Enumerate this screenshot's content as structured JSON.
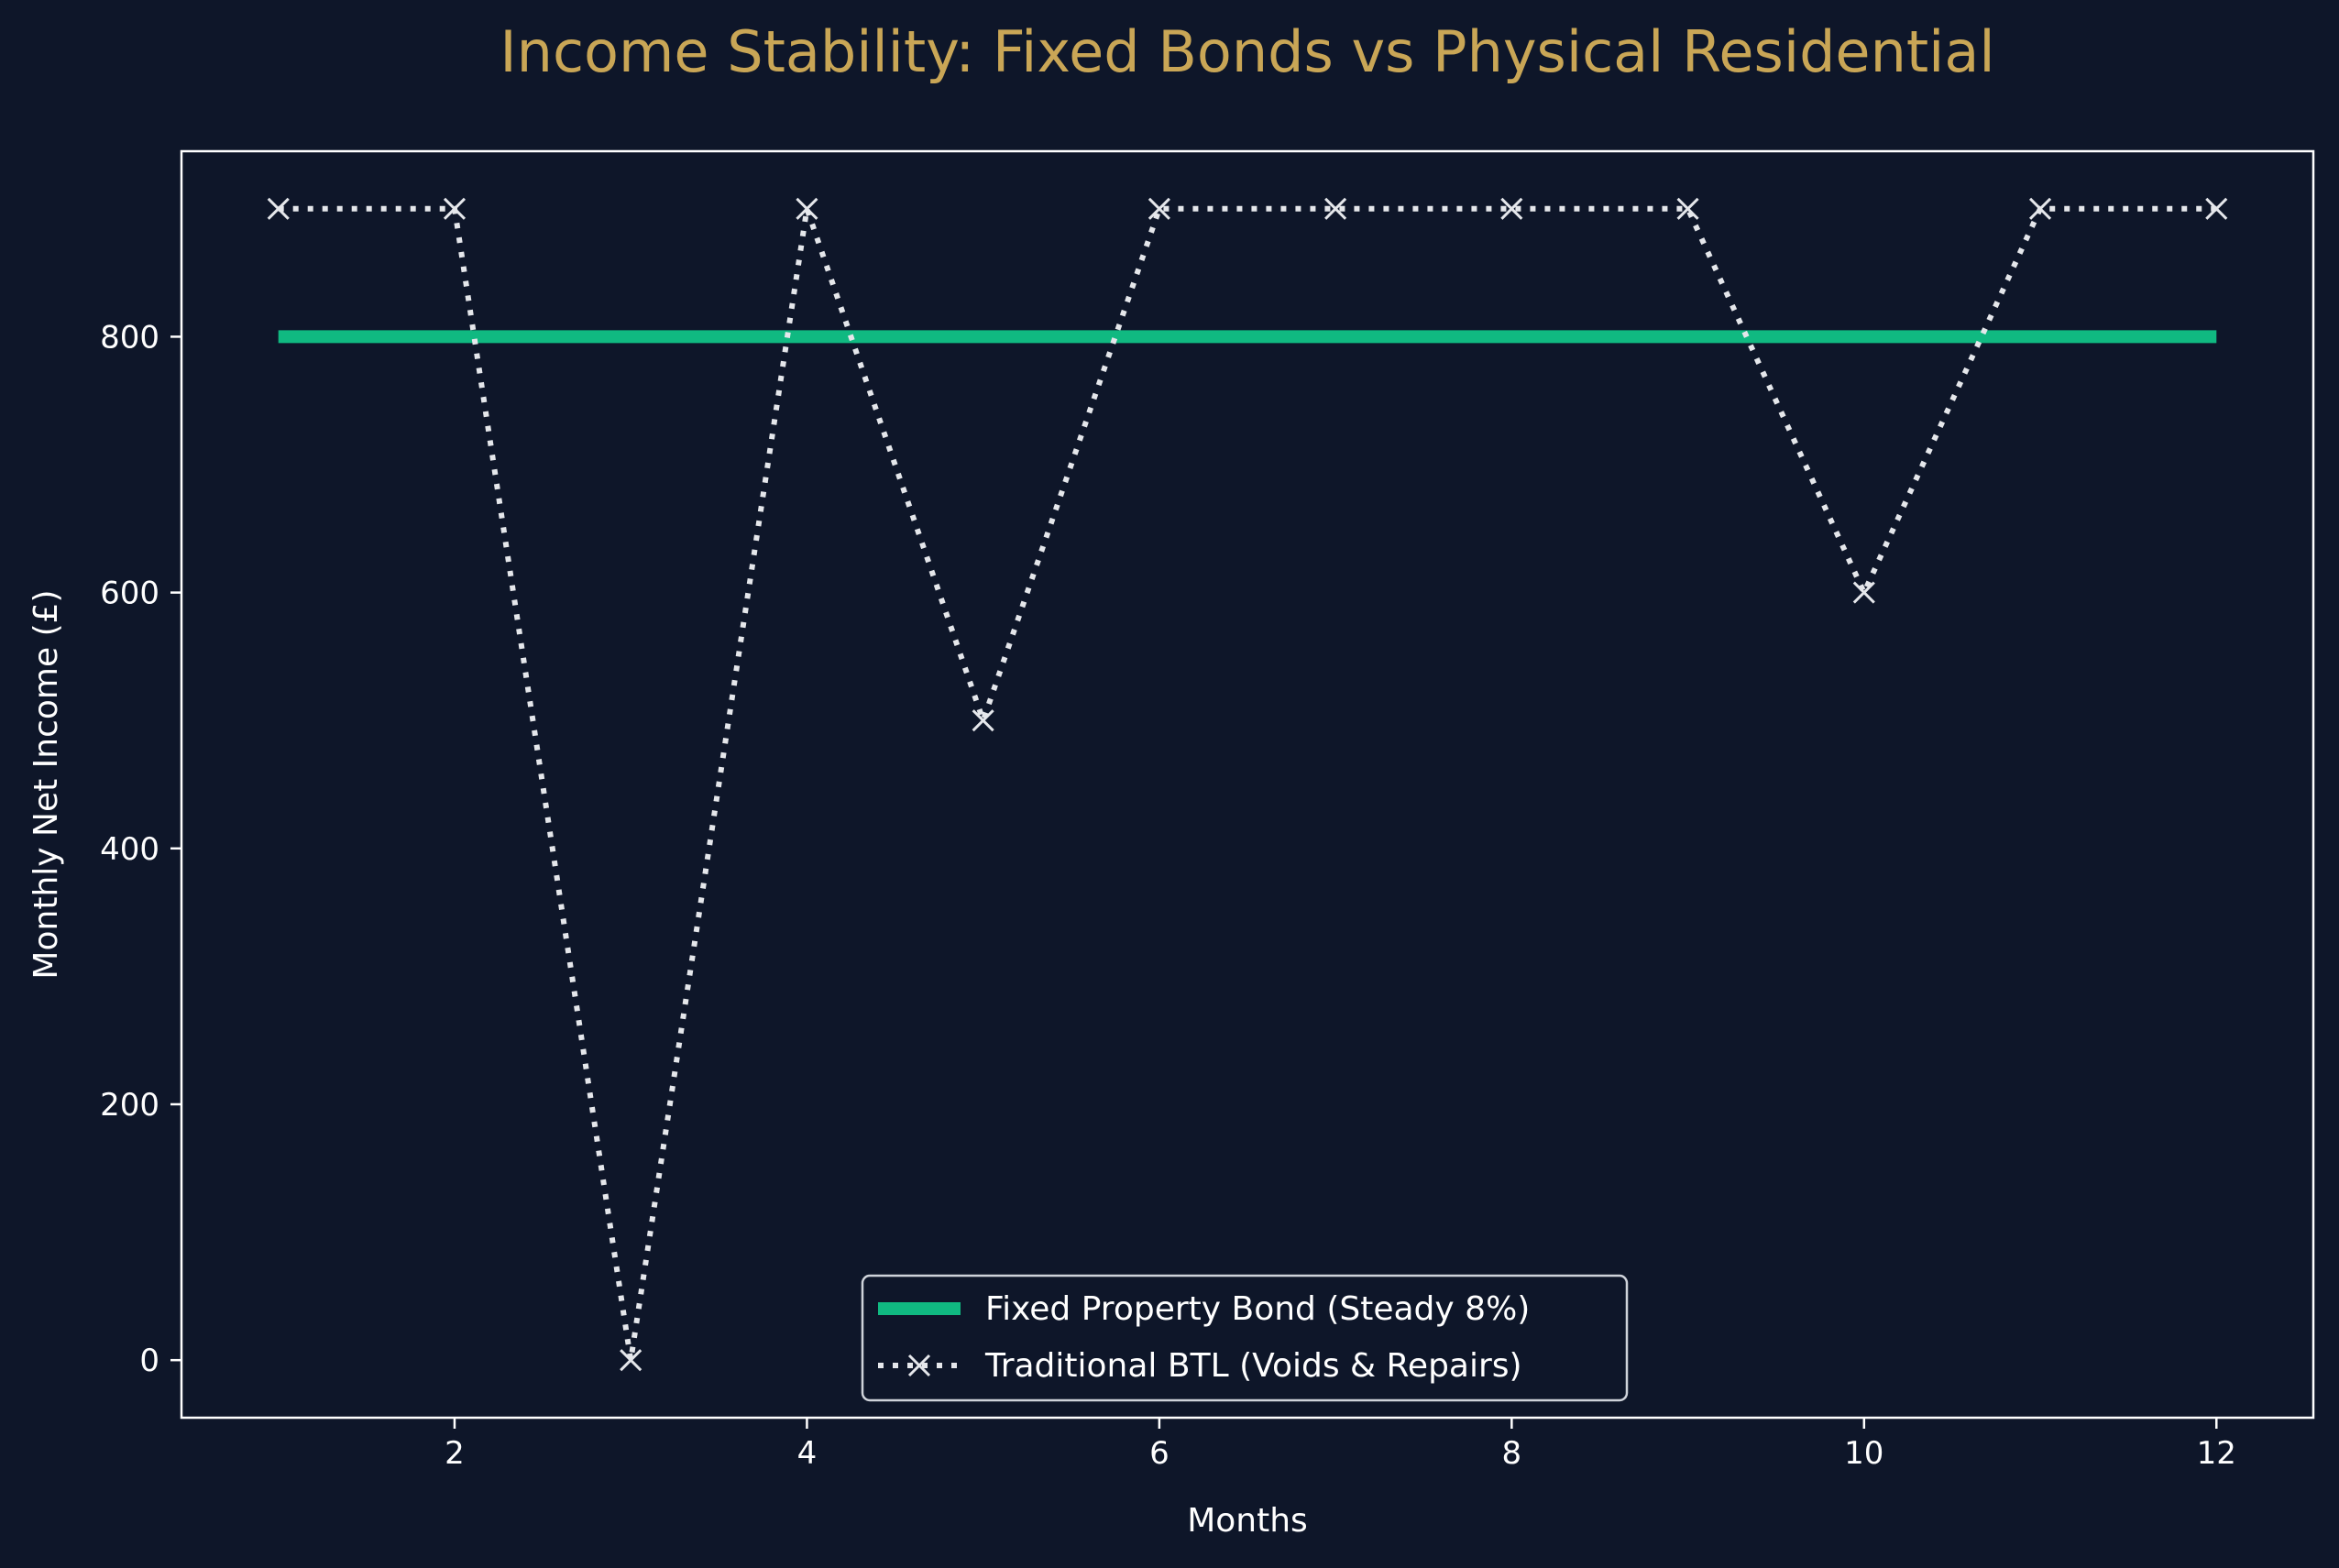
{
  "chart_data": {
    "type": "line",
    "title": "Income Stability: Fixed Bonds vs Physical Residential",
    "xlabel": "Months",
    "ylabel": "Monthly Net Income (£)",
    "x": [
      1,
      2,
      3,
      4,
      5,
      6,
      7,
      8,
      9,
      10,
      11,
      12
    ],
    "xlim": [
      0.45,
      12.55
    ],
    "ylim": [
      -45,
      945
    ],
    "xticks": [
      2,
      4,
      6,
      8,
      10,
      12
    ],
    "yticks": [
      0,
      200,
      400,
      600,
      800
    ],
    "grid": false,
    "legend_position": "bottom-center",
    "series": [
      {
        "name": "Fixed Property Bond (Steady 8%)",
        "values": [
          800,
          800,
          800,
          800,
          800,
          800,
          800,
          800,
          800,
          800,
          800,
          800
        ],
        "color": "#10b981",
        "style": "solid",
        "marker": "none"
      },
      {
        "name": "Traditional BTL (Voids & Repairs)",
        "values": [
          900,
          900,
          0,
          900,
          500,
          900,
          900,
          900,
          900,
          600,
          900,
          900
        ],
        "color": "#e5e7eb",
        "style": "dotted",
        "marker": "x"
      }
    ],
    "colors": {
      "background": "#0e1629",
      "title": "#c9a656",
      "axes": "#ffffff"
    }
  }
}
